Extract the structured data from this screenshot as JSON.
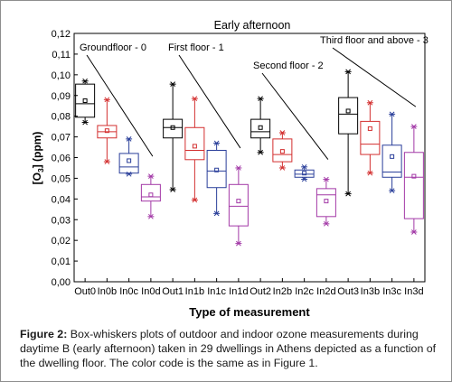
{
  "chart_data": {
    "type": "box",
    "title": "Early afternoon",
    "xlabel": "Type of measurement",
    "ylabel_main": "[O",
    "ylabel_sub": "3",
    "ylabel_rest": "] (ppm)",
    "ylim": [
      0.0,
      0.12
    ],
    "yticks": [
      "0,00",
      "0,01",
      "0,02",
      "0,03",
      "0,04",
      "0,05",
      "0,06",
      "0,07",
      "0,08",
      "0,09",
      "0,10",
      "0,11",
      "0,12"
    ],
    "categories": [
      "Out0",
      "In0b",
      "In0c",
      "In0d",
      "Out1",
      "In1b",
      "In1c",
      "In1d",
      "Out2",
      "In2b",
      "In2c",
      "In2d",
      "Out3",
      "In3b",
      "In3c",
      "In3d"
    ],
    "colors": {
      "Out": "#000000",
      "Inb": "#d32f2f",
      "Inc": "#2a3f9a",
      "Ind": "#a238a6"
    },
    "series_color_keys": [
      "Out",
      "Inb",
      "Inc",
      "Ind",
      "Out",
      "Inb",
      "Inc",
      "Ind",
      "Out",
      "Inb",
      "Inc",
      "Ind",
      "Out",
      "Inb",
      "Inc",
      "Ind"
    ],
    "boxes": [
      {
        "label": "Out0",
        "min": 0.077,
        "q1": 0.0795,
        "median": 0.086,
        "mean": 0.0875,
        "q3": 0.0955,
        "max": 0.097
      },
      {
        "label": "In0b",
        "min": 0.058,
        "q1": 0.0695,
        "median": 0.0725,
        "mean": 0.073,
        "q3": 0.0755,
        "max": 0.088
      },
      {
        "label": "In0c",
        "min": 0.052,
        "q1": 0.0525,
        "median": 0.0555,
        "mean": 0.0585,
        "q3": 0.062,
        "max": 0.069
      },
      {
        "label": "In0d",
        "min": 0.0315,
        "q1": 0.039,
        "median": 0.041,
        "mean": 0.042,
        "q3": 0.047,
        "max": 0.051
      },
      {
        "label": "Out1",
        "min": 0.0445,
        "q1": 0.0695,
        "median": 0.0745,
        "mean": 0.0745,
        "q3": 0.0785,
        "max": 0.0955
      },
      {
        "label": "In1b",
        "min": 0.0395,
        "q1": 0.059,
        "median": 0.0635,
        "mean": 0.0655,
        "q3": 0.0745,
        "max": 0.0885
      },
      {
        "label": "In1c",
        "min": 0.033,
        "q1": 0.0455,
        "median": 0.0535,
        "mean": 0.054,
        "q3": 0.0635,
        "max": 0.067
      },
      {
        "label": "In1d",
        "min": 0.0185,
        "q1": 0.027,
        "median": 0.0365,
        "mean": 0.039,
        "q3": 0.047,
        "max": 0.055
      },
      {
        "label": "Out2",
        "min": 0.0625,
        "q1": 0.0695,
        "median": 0.0725,
        "mean": 0.0745,
        "q3": 0.0785,
        "max": 0.0885
      },
      {
        "label": "In2b",
        "min": 0.055,
        "q1": 0.058,
        "median": 0.0615,
        "mean": 0.063,
        "q3": 0.069,
        "max": 0.072
      },
      {
        "label": "In2c",
        "min": 0.0495,
        "q1": 0.0505,
        "median": 0.052,
        "mean": 0.0525,
        "q3": 0.054,
        "max": 0.0555
      },
      {
        "label": "In2d",
        "min": 0.028,
        "q1": 0.0315,
        "median": 0.042,
        "mean": 0.039,
        "q3": 0.045,
        "max": 0.0495
      },
      {
        "label": "Out3",
        "min": 0.0425,
        "q1": 0.0715,
        "median": 0.081,
        "mean": 0.0825,
        "q3": 0.089,
        "max": 0.1015
      },
      {
        "label": "In3b",
        "min": 0.0525,
        "q1": 0.0615,
        "median": 0.0665,
        "mean": 0.074,
        "q3": 0.0775,
        "max": 0.0865
      },
      {
        "label": "In3c",
        "min": 0.044,
        "q1": 0.0505,
        "median": 0.053,
        "mean": 0.0605,
        "q3": 0.066,
        "max": 0.081
      },
      {
        "label": "In3d",
        "min": 0.024,
        "q1": 0.0305,
        "median": 0.0505,
        "mean": 0.051,
        "q3": 0.0625,
        "max": 0.075
      }
    ],
    "annotations": [
      {
        "text": "Groundfloor - 0",
        "from_category": "Out0",
        "to_category": "In0d"
      },
      {
        "text": "First floor - 1",
        "from_category": "Out1",
        "to_category": "In1d"
      },
      {
        "text": "Second floor - 2",
        "from_category": "Out2",
        "to_category": "In2d"
      },
      {
        "text": "Third floor and above - 3",
        "from_category": "Out3",
        "to_category": "In3d"
      }
    ]
  },
  "caption": {
    "label": "Figure 2:",
    "text": " Box-whiskers plots of outdoor and indoor ozone measurements during daytime B (early afternoon) taken in 29 dwellings in Athens depicted as a function of the dwelling floor. The color code is the same as in Figure 1."
  }
}
